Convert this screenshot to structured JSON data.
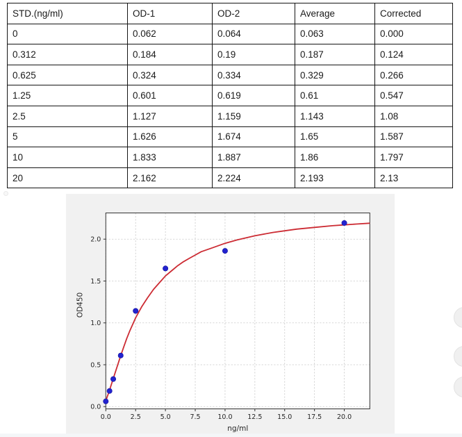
{
  "table": {
    "headers": [
      "STD.(ng/ml)",
      "OD-1",
      "OD-2",
      "Average",
      "Corrected"
    ],
    "rows": [
      [
        "0",
        "0.062",
        "0.064",
        "0.063",
        "0.000"
      ],
      [
        "0.312",
        "0.184",
        "0.19",
        "0.187",
        "0.124"
      ],
      [
        "0.625",
        "0.324",
        "0.334",
        "0.329",
        "0.266"
      ],
      [
        "1.25",
        "0.601",
        "0.619",
        "0.61",
        "0.547"
      ],
      [
        "2.5",
        "1.127",
        "1.159",
        "1.143",
        "1.08"
      ],
      [
        "5",
        "1.626",
        "1.674",
        "1.65",
        "1.587"
      ],
      [
        "10",
        "1.833",
        "1.887",
        "1.86",
        "1.797"
      ],
      [
        "20",
        "2.162",
        "2.224",
        "2.193",
        "2.13"
      ]
    ]
  },
  "chart_data": {
    "type": "scatter",
    "title": "",
    "xlabel": "ng/ml",
    "ylabel": "OD450",
    "xlim": [
      0,
      22.14
    ],
    "ylim": [
      -0.027,
      2.313
    ],
    "xticks": [
      "0.0",
      "2.5",
      "5.0",
      "7.5",
      "10.0",
      "12.5",
      "15.0",
      "17.5",
      "20.0"
    ],
    "yticks": [
      "0.0",
      "0.5",
      "1.0",
      "1.5",
      "2.0"
    ],
    "grid": true,
    "legend": false,
    "colors": {
      "figure_bg": "#f1f1f1",
      "axes_bg": "#ffffff",
      "gridline": "#c9c9c9",
      "spine": "#333333",
      "point": "#2222cf",
      "point_edge": "#12129a",
      "curve": "#cc2b33"
    },
    "series": [
      {
        "name": "standard-points",
        "type": "scatter",
        "x": [
          0,
          0.312,
          0.625,
          1.25,
          2.5,
          5,
          10,
          20
        ],
        "y": [
          0.063,
          0.187,
          0.329,
          0.61,
          1.143,
          1.65,
          1.86,
          2.193
        ]
      },
      {
        "name": "fit-curve",
        "type": "line",
        "points": [
          [
            0,
            0.07
          ],
          [
            0.25,
            0.17
          ],
          [
            0.5,
            0.28
          ],
          [
            0.75,
            0.39
          ],
          [
            1.0,
            0.5
          ],
          [
            1.25,
            0.61
          ],
          [
            1.5,
            0.71
          ],
          [
            1.75,
            0.81
          ],
          [
            2.0,
            0.9
          ],
          [
            2.5,
            1.06
          ],
          [
            3.0,
            1.19
          ],
          [
            3.5,
            1.3
          ],
          [
            4.0,
            1.4
          ],
          [
            4.5,
            1.48
          ],
          [
            5.0,
            1.56
          ],
          [
            5.5,
            1.62
          ],
          [
            6.0,
            1.68
          ],
          [
            6.5,
            1.73
          ],
          [
            7.0,
            1.77
          ],
          [
            7.5,
            1.81
          ],
          [
            8.0,
            1.85
          ],
          [
            9.0,
            1.9
          ],
          [
            10.0,
            1.95
          ],
          [
            11.0,
            1.99
          ],
          [
            12.5,
            2.04
          ],
          [
            14.0,
            2.08
          ],
          [
            15.0,
            2.1
          ],
          [
            16.0,
            2.12
          ],
          [
            17.5,
            2.14
          ],
          [
            19.0,
            2.16
          ],
          [
            20.0,
            2.17
          ],
          [
            21.0,
            2.18
          ],
          [
            22.1,
            2.19
          ]
        ]
      }
    ]
  }
}
